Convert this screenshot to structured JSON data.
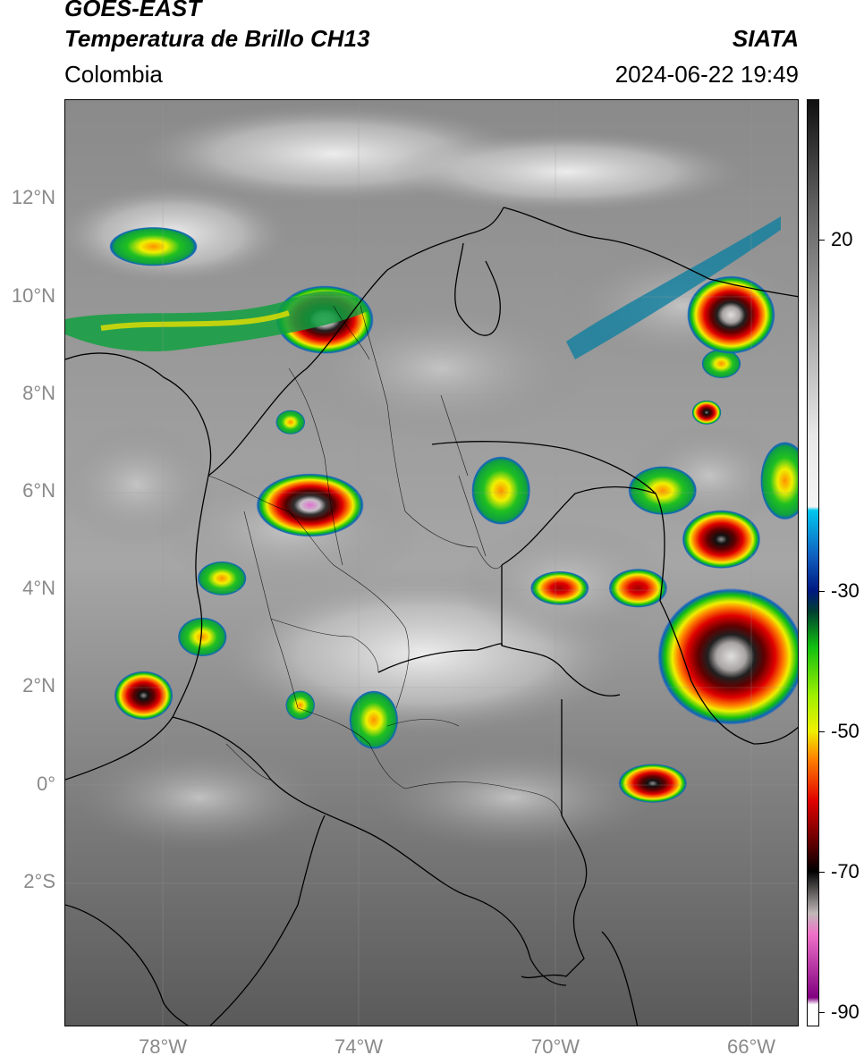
{
  "header": {
    "satellite": "GOES-EAST",
    "product": "Temperatura de Brillo CH13",
    "region": "Colombia",
    "org": "SIATA",
    "datetime": "2024-06-22 19:49"
  },
  "map": {
    "lat_labels": [
      "12°N",
      "10°N",
      "8°N",
      "6°N",
      "4°N",
      "2°N",
      "0°",
      "2°S"
    ],
    "lon_labels": [
      "78°W",
      "74°W",
      "70°W",
      "66°W"
    ],
    "lat_range": [
      -5,
      14
    ],
    "lon_range": [
      -80,
      -65
    ],
    "storm_cells": [
      {
        "lon": -75.0,
        "lat": 5.7,
        "rx": 1.1,
        "ry": 0.65,
        "core": "violet"
      },
      {
        "lon": -74.7,
        "lat": 9.5,
        "rx": 1.0,
        "ry": 0.7,
        "core": "white"
      },
      {
        "lon": -66.4,
        "lat": 9.6,
        "rx": 0.9,
        "ry": 0.8,
        "core": "white"
      },
      {
        "lon": -66.4,
        "lat": 2.6,
        "rx": 1.5,
        "ry": 1.4,
        "core": "white"
      },
      {
        "lon": -66.6,
        "lat": 5.0,
        "rx": 0.8,
        "ry": 0.6,
        "core": "black"
      },
      {
        "lon": -68.0,
        "lat": 0.0,
        "rx": 0.7,
        "ry": 0.4,
        "core": "black"
      },
      {
        "lon": -78.4,
        "lat": 1.8,
        "rx": 0.6,
        "ry": 0.5,
        "core": "black"
      },
      {
        "lon": -69.9,
        "lat": 4.0,
        "rx": 0.6,
        "ry": 0.35,
        "core": "red"
      },
      {
        "lon": -68.3,
        "lat": 4.0,
        "rx": 0.6,
        "ry": 0.4,
        "core": "red"
      },
      {
        "lon": -66.9,
        "lat": 7.6,
        "rx": 0.3,
        "ry": 0.25,
        "core": "black"
      }
    ],
    "warm_clusters": [
      {
        "lon": -71.1,
        "lat": 6.0,
        "rx": 0.6,
        "ry": 0.7
      },
      {
        "lon": -76.8,
        "lat": 4.2,
        "rx": 0.5,
        "ry": 0.35
      },
      {
        "lon": -73.7,
        "lat": 1.3,
        "rx": 0.5,
        "ry": 0.6
      },
      {
        "lon": -75.2,
        "lat": 1.6,
        "rx": 0.3,
        "ry": 0.3
      },
      {
        "lon": -77.2,
        "lat": 3.0,
        "rx": 0.5,
        "ry": 0.4
      },
      {
        "lon": -78.2,
        "lat": 11.0,
        "rx": 0.9,
        "ry": 0.4
      },
      {
        "lon": -67.8,
        "lat": 6.0,
        "rx": 0.7,
        "ry": 0.5
      },
      {
        "lon": -66.6,
        "lat": 8.6,
        "rx": 0.4,
        "ry": 0.3
      },
      {
        "lon": -75.4,
        "lat": 7.4,
        "rx": 0.3,
        "ry": 0.25
      },
      {
        "lon": -65.3,
        "lat": 6.2,
        "rx": 0.5,
        "ry": 0.8
      }
    ]
  },
  "colorbar": {
    "tick_labels": [
      "20",
      "-30",
      "-50",
      "-70",
      "-90"
    ],
    "tick_values": [
      20,
      -30,
      -50,
      -70,
      -90
    ],
    "range": [
      -92,
      40
    ],
    "stops": [
      {
        "t": 40,
        "color": "#101010"
      },
      {
        "t": 25,
        "color": "#606060"
      },
      {
        "t": -8,
        "color": "#e8e8e8"
      },
      {
        "t": -18,
        "color": "#f4f4f4"
      },
      {
        "t": -18.5,
        "color": "#00c8f0"
      },
      {
        "t": -25,
        "color": "#1060c0"
      },
      {
        "t": -30,
        "color": "#001880"
      },
      {
        "t": -33,
        "color": "#004030"
      },
      {
        "t": -38,
        "color": "#10c010"
      },
      {
        "t": -45,
        "color": "#a0f000"
      },
      {
        "t": -50,
        "color": "#f0f000"
      },
      {
        "t": -54,
        "color": "#ff8000"
      },
      {
        "t": -60,
        "color": "#e00000"
      },
      {
        "t": -66,
        "color": "#600000"
      },
      {
        "t": -70,
        "color": "#000000"
      },
      {
        "t": -76,
        "color": "#c0b8b8"
      },
      {
        "t": -79,
        "color": "#f070c8"
      },
      {
        "t": -88,
        "color": "#800080"
      },
      {
        "t": -89,
        "color": "#ffffff"
      },
      {
        "t": -92,
        "color": "#ffffff"
      }
    ]
  }
}
